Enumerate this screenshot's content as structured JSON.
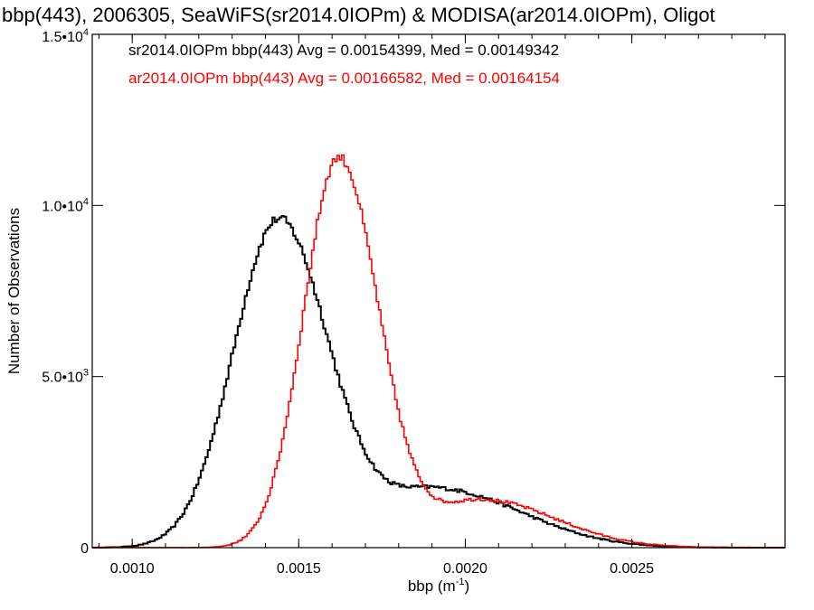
{
  "chart_data": {
    "type": "line",
    "title": "bbp(443), 2006305, SeaWiFS(sr2014.0IOPm) & MODISA(ar2014.0IOPm), Oligot",
    "xlabel": "bbp (m",
    "xlabel_sup": "-1",
    "xlabel_close": ")",
    "ylabel": "Number of Observations",
    "xlim": [
      0.00088,
      0.00296
    ],
    "ylim": [
      0,
      15000
    ],
    "x_ticks": [
      {
        "value": 0.001,
        "label": "0.0010"
      },
      {
        "value": 0.0015,
        "label": "0.0015"
      },
      {
        "value": 0.002,
        "label": "0.0020"
      },
      {
        "value": 0.0025,
        "label": "0.0025"
      }
    ],
    "y_ticks": [
      {
        "value": 0,
        "mant": "0",
        "exp": ""
      },
      {
        "value": 5000,
        "mant": "5.0•10",
        "exp": "3"
      },
      {
        "value": 10000,
        "mant": "1.0•10",
        "exp": "4"
      },
      {
        "value": 15000,
        "mant": "1.5•10",
        "exp": "4"
      }
    ],
    "grid": false,
    "legend": "top-left",
    "series": [
      {
        "name": "sr2014.0IOPm",
        "label": "sr2014.0IOPm bbp(443) Avg = 0.00154399, Med = 0.00149342",
        "color": "#000000",
        "peaks": [
          {
            "center": 0.00144,
            "sigma_left": 0.000135,
            "sigma_right": 0.00015,
            "amp": 9600
          },
          {
            "center": 0.00192,
            "sigma_left": 0.00016,
            "sigma_right": 0.00025,
            "amp": 1700
          }
        ]
      },
      {
        "name": "ar2014.0IOPm",
        "label": "ar2014.0IOPm bbp(443) Avg = 0.00166582, Med = 0.00164154",
        "color": "#ff0000",
        "peaks": [
          {
            "center": 0.00162,
            "sigma_left": 0.000105,
            "sigma_right": 0.00012,
            "amp": 11400
          },
          {
            "center": 0.00205,
            "sigma_left": 0.00014,
            "sigma_right": 0.00022,
            "amp": 1400
          }
        ]
      }
    ]
  }
}
